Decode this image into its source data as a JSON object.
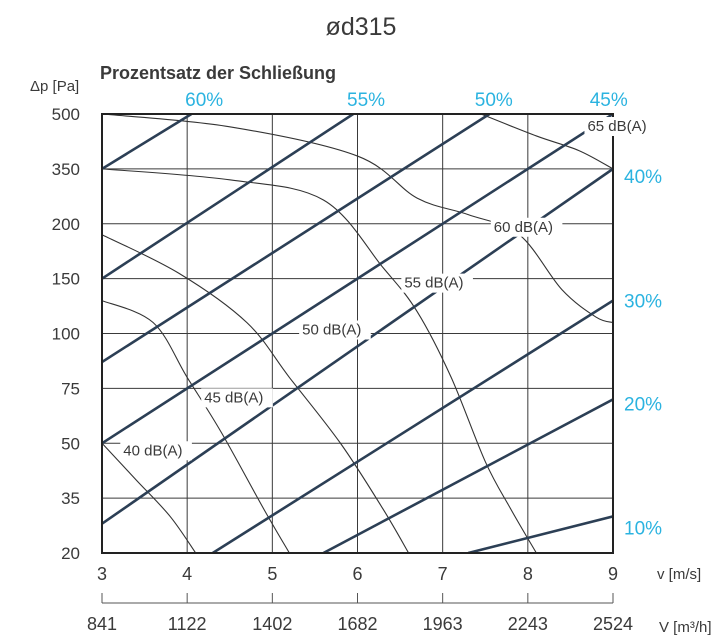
{
  "chart_data": {
    "type": "line",
    "title": "ød315",
    "subtitle": "Prozentsatz der Schließung",
    "ylabel": "Δp [Pa]",
    "xlabel": "v [m/s]",
    "x2label": "V [m³/h]",
    "x_ticks": [
      "3",
      "4",
      "5",
      "6",
      "7",
      "8",
      "9"
    ],
    "x2_ticks": [
      "841",
      "1122",
      "1402",
      "1682",
      "1963",
      "2243",
      "2524"
    ],
    "y_ticks": [
      "20",
      "35",
      "50",
      "75",
      "100",
      "150",
      "200",
      "350",
      "500"
    ],
    "xlim": [
      3,
      9
    ],
    "grid": true,
    "damper_series": [
      {
        "name": "60%",
        "points": [
          [
            3,
            350
          ],
          [
            4.05,
            500
          ]
        ]
      },
      {
        "name": "55%",
        "points": [
          [
            3,
            150
          ],
          [
            5.95,
            500
          ]
        ]
      },
      {
        "name": "50%",
        "points": [
          [
            3,
            87
          ],
          [
            7.55,
            500
          ]
        ]
      },
      {
        "name": "45%",
        "points": [
          [
            3,
            50
          ],
          [
            9,
            500
          ]
        ]
      },
      {
        "name": "40%",
        "points": [
          [
            3,
            28
          ],
          [
            9,
            350
          ]
        ]
      },
      {
        "name": "30%",
        "points": [
          [
            4.3,
            20
          ],
          [
            9,
            130
          ]
        ]
      },
      {
        "name": "20%",
        "points": [
          [
            5.6,
            20
          ],
          [
            9,
            70
          ]
        ]
      },
      {
        "name": "10%",
        "points": [
          [
            7.3,
            20
          ],
          [
            9,
            30
          ]
        ]
      }
    ],
    "sound_series": [
      {
        "name": "40 dB(A)",
        "points": [
          [
            3,
            50
          ],
          [
            3.4,
            40
          ],
          [
            3.8,
            30
          ],
          [
            4.1,
            20
          ]
        ]
      },
      {
        "name": "45 dB(A)",
        "points": [
          [
            3,
            130
          ],
          [
            3.6,
            110
          ],
          [
            4,
            80
          ],
          [
            4.4,
            55
          ],
          [
            4.9,
            32
          ],
          [
            5.2,
            20
          ]
        ]
      },
      {
        "name": "50 dB(A)",
        "points": [
          [
            3,
            190
          ],
          [
            3.9,
            155
          ],
          [
            4.7,
            110
          ],
          [
            5.2,
            80
          ],
          [
            5.8,
            50
          ],
          [
            6.3,
            32
          ],
          [
            6.6,
            20
          ]
        ]
      },
      {
        "name": "55 dB(A)",
        "points": [
          [
            3,
            350
          ],
          [
            4.5,
            320
          ],
          [
            5.6,
            265
          ],
          [
            6.3,
            160
          ],
          [
            6.7,
            120
          ],
          [
            7.1,
            80
          ],
          [
            7.5,
            45
          ],
          [
            7.8,
            32
          ],
          [
            8.1,
            20
          ]
        ]
      },
      {
        "name": "60 dB(A)",
        "points": [
          [
            3,
            500
          ],
          [
            4.5,
            465
          ],
          [
            6,
            385
          ],
          [
            6.7,
            270
          ],
          [
            7.3,
            225
          ],
          [
            7.9,
            190
          ],
          [
            8.4,
            140
          ],
          [
            8.8,
            115
          ],
          [
            9,
            110
          ]
        ]
      },
      {
        "name": "65 dB(A)",
        "points": [
          [
            7.45,
            500
          ],
          [
            8.1,
            440
          ],
          [
            8.6,
            400
          ],
          [
            9,
            350
          ]
        ]
      }
    ],
    "damper_labels": {
      "top": [
        "60%",
        "55%",
        "50%",
        "45%"
      ],
      "right": [
        "40%",
        "30%",
        "20%",
        "10%"
      ]
    },
    "sound_labels": [
      "40 dB(A)",
      "45 dB(A)",
      "50 dB(A)",
      "55 dB(A)",
      "60 dB(A)",
      "65 dB(A)"
    ]
  }
}
